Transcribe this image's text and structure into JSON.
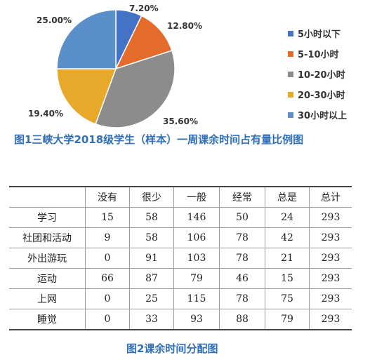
{
  "chart_data": [
    {
      "type": "pie",
      "title": "图1三峡大学2018级学生（样本）一周课余时间占有量比例图",
      "categories": [
        "5小时以下",
        "5-10小时",
        "10-20小时",
        "20-30小时",
        "30小时以上"
      ],
      "values": [
        7.2,
        12.8,
        35.6,
        19.4,
        25.0
      ],
      "value_labels": [
        "7.20%",
        "12.80%",
        "35.60%",
        "19.40%",
        "25.00%"
      ],
      "colors": [
        "#4472c4",
        "#e46c2b",
        "#8c8c8c",
        "#e8a82a",
        "#5b8fc9"
      ],
      "legend": "right"
    },
    {
      "type": "table",
      "title": "图2课余时间分配图",
      "columns": [
        "",
        "没有",
        "很少",
        "一般",
        "经常",
        "总是",
        "总计"
      ],
      "rows": [
        [
          "学习",
          "15",
          "58",
          "146",
          "50",
          "24",
          "293"
        ],
        [
          "社团和活动",
          "9",
          "58",
          "106",
          "78",
          "42",
          "293"
        ],
        [
          "外出游玩",
          "0",
          "91",
          "103",
          "78",
          "21",
          "293"
        ],
        [
          "运动",
          "66",
          "87",
          "79",
          "46",
          "15",
          "293"
        ],
        [
          "上网",
          "0",
          "25",
          "115",
          "78",
          "75",
          "293"
        ],
        [
          "睡觉",
          "0",
          "33",
          "93",
          "88",
          "79",
          "293"
        ]
      ]
    }
  ]
}
